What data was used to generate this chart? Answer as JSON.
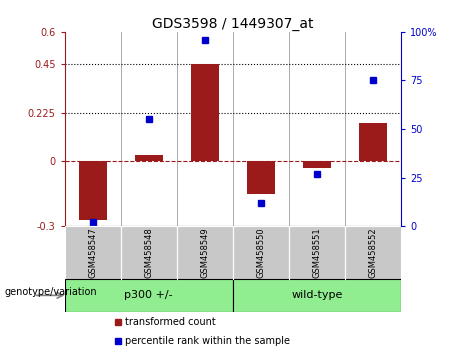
{
  "title": "GDS3598 / 1449307_at",
  "categories": [
    "GSM458547",
    "GSM458548",
    "GSM458549",
    "GSM458550",
    "GSM458551",
    "GSM458552"
  ],
  "bar_values": [
    -0.27,
    0.03,
    0.45,
    -0.15,
    -0.03,
    0.18
  ],
  "percentile_values": [
    2,
    55,
    96,
    12,
    27,
    75
  ],
  "ylim_left": [
    -0.3,
    0.6
  ],
  "ylim_right": [
    0,
    100
  ],
  "yticks_left": [
    -0.3,
    0,
    0.225,
    0.45,
    0.6
  ],
  "yticks_left_labels": [
    "-0.3",
    "0",
    "0.225",
    "0.45",
    "0.6"
  ],
  "yticks_right": [
    0,
    25,
    50,
    75,
    100
  ],
  "yticks_right_labels": [
    "0",
    "25",
    "50",
    "75",
    "100%"
  ],
  "hlines_dotted": [
    0.225,
    0.45
  ],
  "hline_dashed": 0.0,
  "bar_color": "#9B1B1B",
  "dot_color": "#0000CC",
  "bar_width": 0.5,
  "group1_label": "p300 +/-",
  "group2_label": "wild-type",
  "group1_indices": [
    0,
    1,
    2
  ],
  "group2_indices": [
    3,
    4,
    5
  ],
  "group_color": "#90EE90",
  "legend_bar_label": "transformed count",
  "legend_dot_label": "percentile rank within the sample",
  "genotype_label": "genotype/variation",
  "title_fontsize": 10,
  "tick_fontsize": 7,
  "axis_fontsize": 7,
  "bg_plot": "#FFFFFF",
  "bg_ticklabels": "#C8C8C8"
}
